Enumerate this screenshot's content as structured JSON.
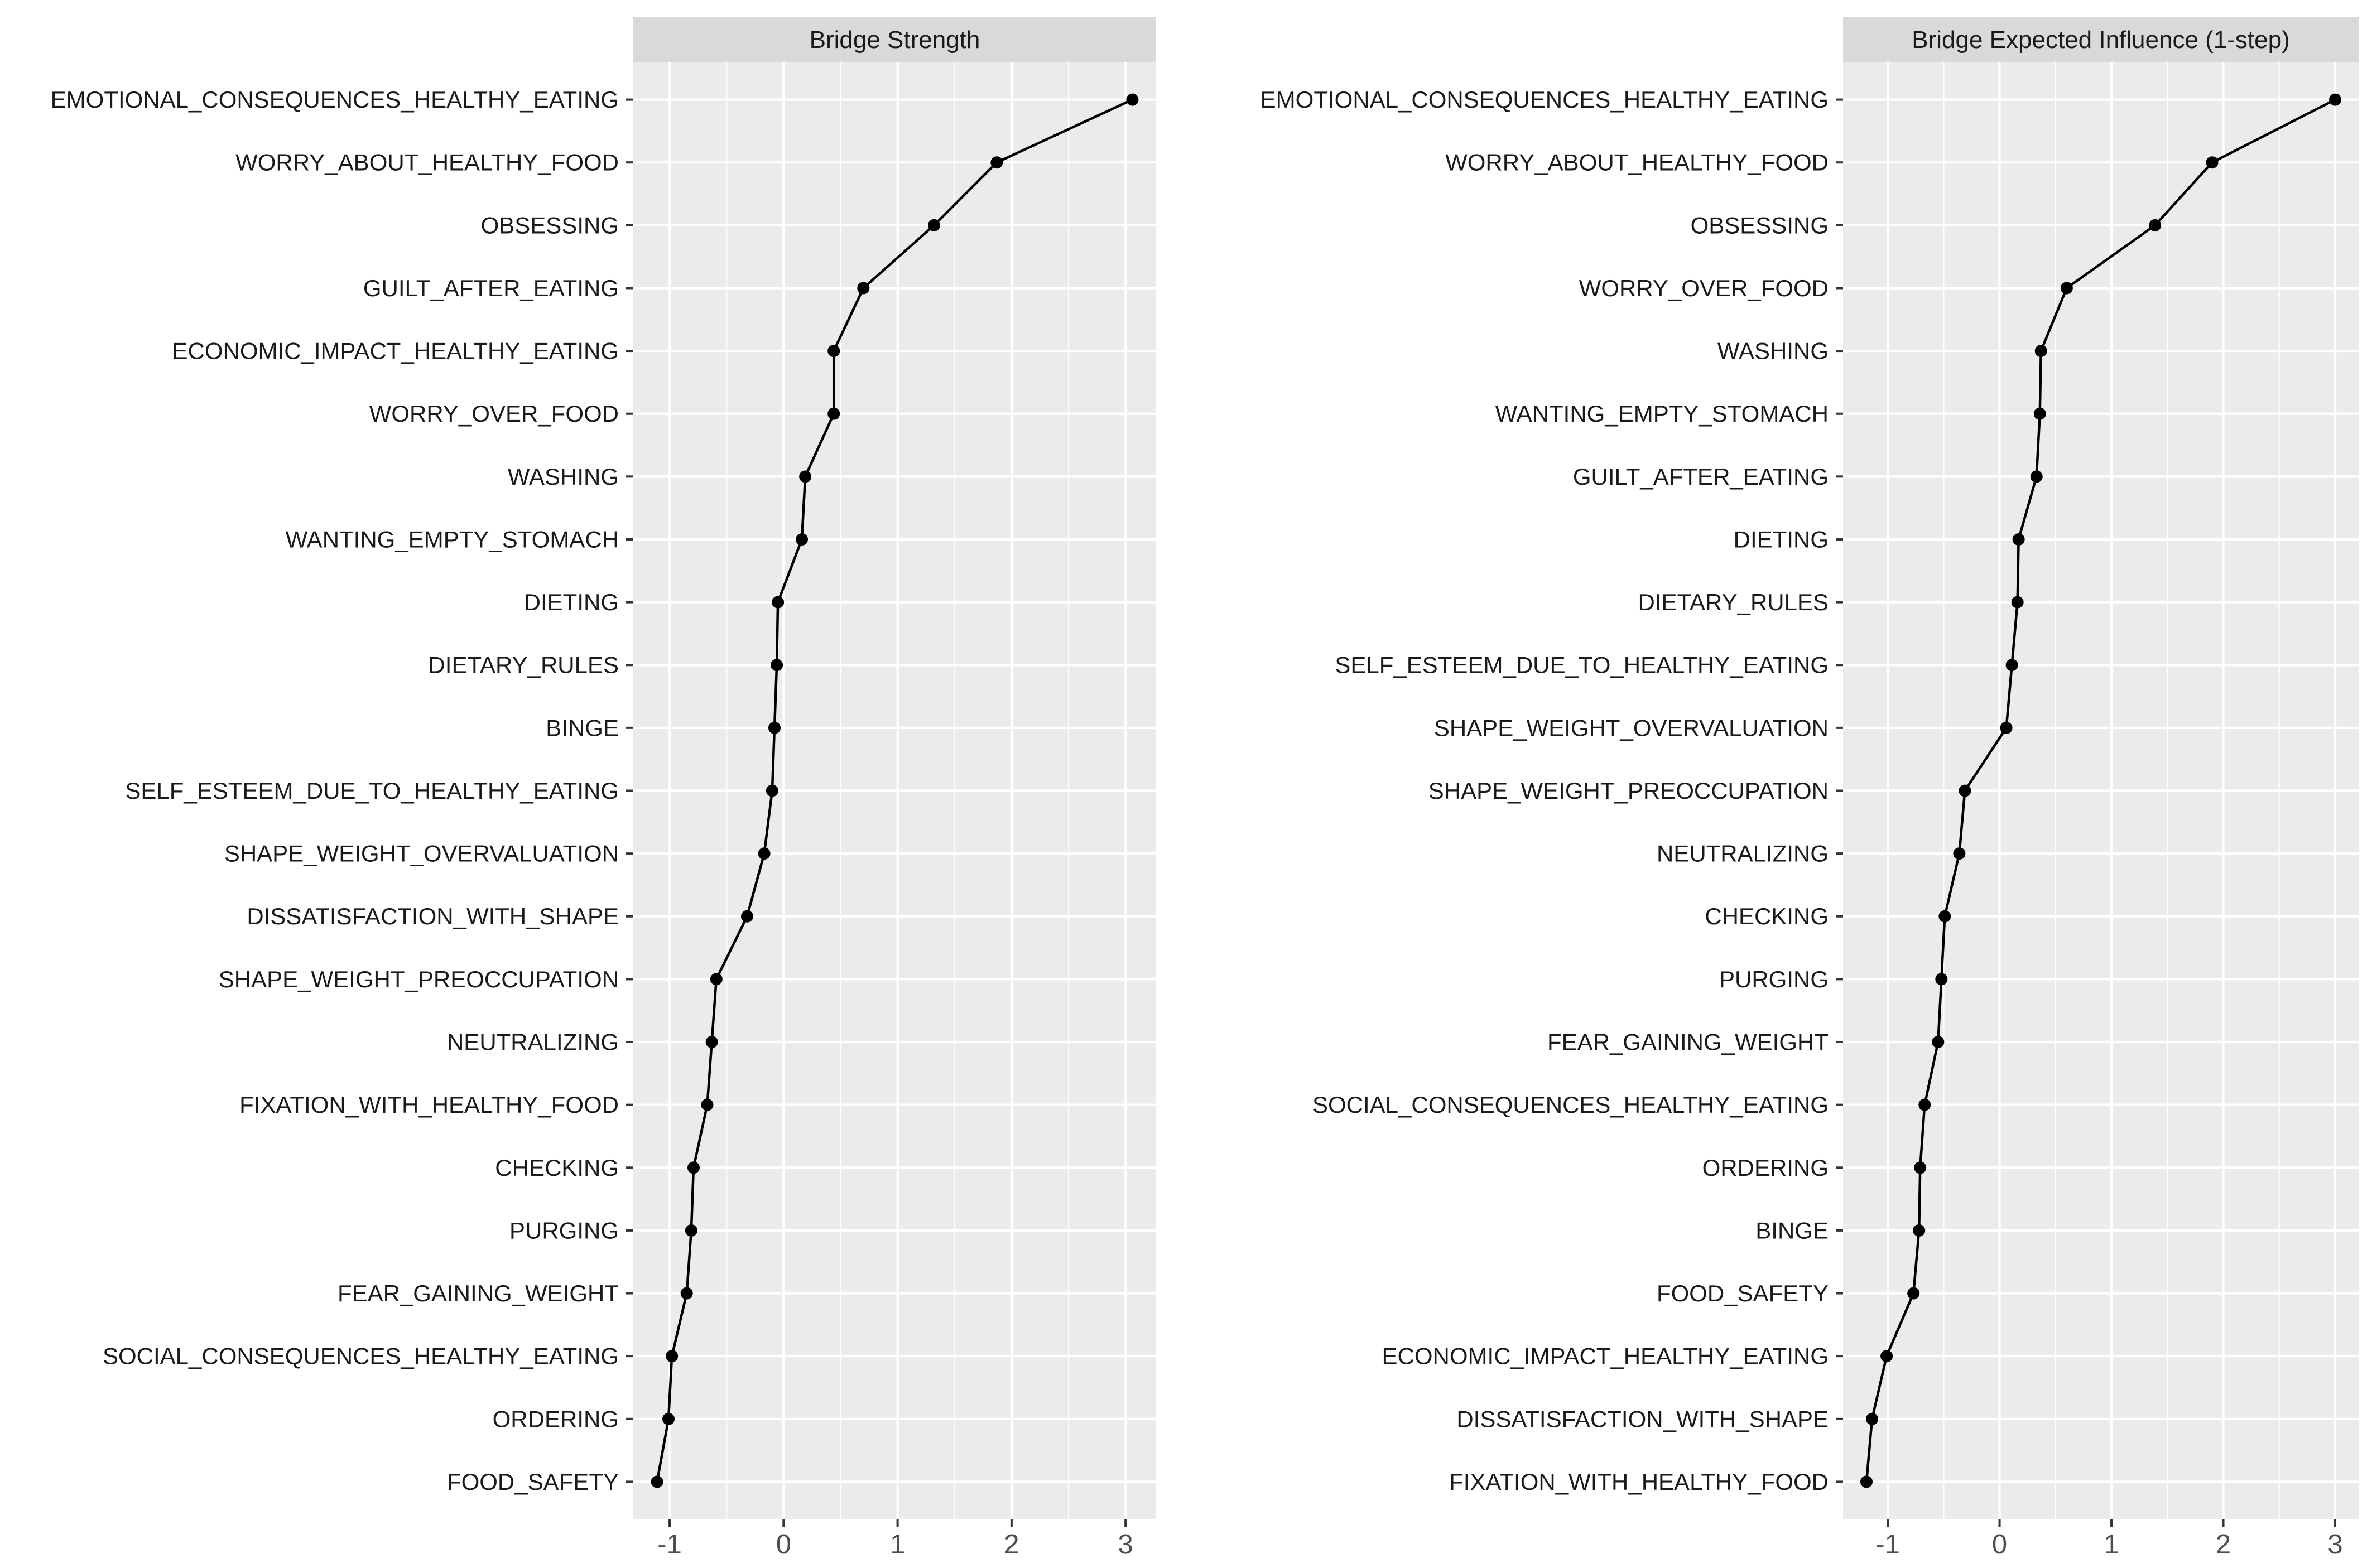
{
  "figure": {
    "background": "#FFFFFF",
    "panel_background": "#EBEBEB",
    "strip_background": "#D9D9D9",
    "grid_color": "#FFFFFF",
    "tick_color": "#333333",
    "axis_number_color": "#4D4D4D",
    "category_label_color": "#1A1A1A",
    "line_color": "#000000",
    "point_color": "#000000"
  },
  "chart_data": [
    {
      "type": "line",
      "title": "Bridge Strength",
      "orientation": "horizontal-dot-line",
      "xlabel": "",
      "ylabel": "",
      "x_tick_labels": [
        "-1",
        "0",
        "1",
        "2",
        "3"
      ],
      "x_ticks": [
        -1,
        0,
        1,
        2,
        3
      ],
      "x_minor_gridlines": [
        -0.5,
        0.5,
        1.5,
        2.5
      ],
      "expansion": 0.05,
      "grid": true,
      "categories": [
        "EMOTIONAL_CONSEQUENCES_HEALTHY_EATING",
        "WORRY_ABOUT_HEALTHY_FOOD",
        "OBSESSING",
        "GUILT_AFTER_EATING",
        "ECONOMIC_IMPACT_HEALTHY_EATING",
        "WORRY_OVER_FOOD",
        "WASHING",
        "WANTING_EMPTY_STOMACH",
        "DIETING",
        "DIETARY_RULES",
        "BINGE",
        "SELF_ESTEEM_DUE_TO_HEALTHY_EATING",
        "SHAPE_WEIGHT_OVERVALUATION",
        "DISSATISFACTION_WITH_SHAPE",
        "SHAPE_WEIGHT_PREOCCUPATION",
        "NEUTRALIZING",
        "FIXATION_WITH_HEALTHY_FOOD",
        "CHECKING",
        "PURGING",
        "FEAR_GAINING_WEIGHT",
        "SOCIAL_CONSEQUENCES_HEALTHY_EATING",
        "ORDERING",
        "FOOD_SAFETY"
      ],
      "values": [
        3.06,
        1.87,
        1.32,
        0.7,
        0.44,
        0.44,
        0.19,
        0.16,
        -0.05,
        -0.06,
        -0.08,
        -0.1,
        -0.17,
        -0.32,
        -0.59,
        -0.63,
        -0.67,
        -0.79,
        -0.81,
        -0.85,
        -0.98,
        -1.01,
        -1.11
      ]
    },
    {
      "type": "line",
      "title": "Bridge Expected Influence (1-step)",
      "orientation": "horizontal-dot-line",
      "xlabel": "",
      "ylabel": "",
      "x_tick_labels": [
        "-1",
        "0",
        "1",
        "2",
        "3"
      ],
      "x_ticks": [
        -1,
        0,
        1,
        2,
        3
      ],
      "x_minor_gridlines": [
        -0.5,
        0.5,
        1.5,
        2.5
      ],
      "expansion": 0.05,
      "grid": true,
      "categories": [
        "EMOTIONAL_CONSEQUENCES_HEALTHY_EATING",
        "WORRY_ABOUT_HEALTHY_FOOD",
        "OBSESSING",
        "WORRY_OVER_FOOD",
        "WASHING",
        "WANTING_EMPTY_STOMACH",
        "GUILT_AFTER_EATING",
        "DIETING",
        "DIETARY_RULES",
        "SELF_ESTEEM_DUE_TO_HEALTHY_EATING",
        "SHAPE_WEIGHT_OVERVALUATION",
        "SHAPE_WEIGHT_PREOCCUPATION",
        "NEUTRALIZING",
        "CHECKING",
        "PURGING",
        "FEAR_GAINING_WEIGHT",
        "SOCIAL_CONSEQUENCES_HEALTHY_EATING",
        "ORDERING",
        "BINGE",
        "FOOD_SAFETY",
        "ECONOMIC_IMPACT_HEALTHY_EATING",
        "DISSATISFACTION_WITH_SHAPE",
        "FIXATION_WITH_HEALTHY_FOOD"
      ],
      "values": [
        3.0,
        1.9,
        1.39,
        0.6,
        0.37,
        0.36,
        0.33,
        0.17,
        0.16,
        0.11,
        0.06,
        -0.31,
        -0.36,
        -0.49,
        -0.52,
        -0.55,
        -0.67,
        -0.71,
        -0.72,
        -0.77,
        -1.01,
        -1.14,
        -1.19
      ]
    }
  ]
}
